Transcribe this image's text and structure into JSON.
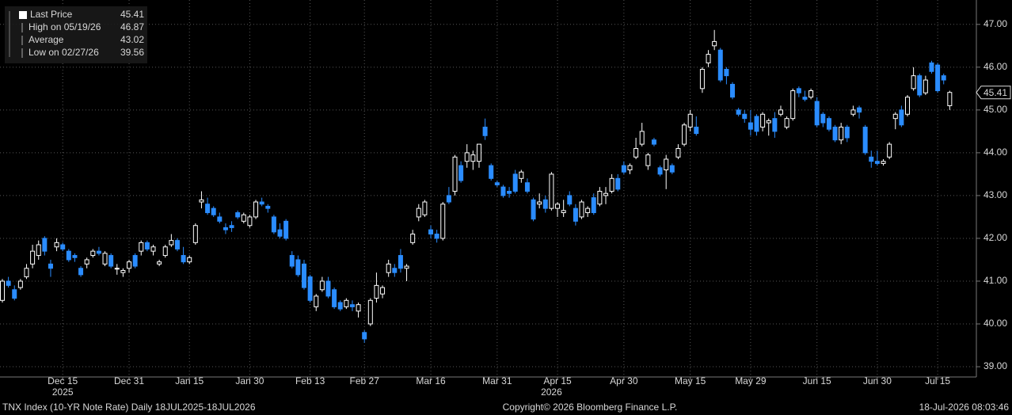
{
  "chart_data": {
    "type": "candlestick",
    "footer_left": "TNX Index (10-YR Note Rate) Daily 18JUL2025-18JUL2026",
    "footer_center": "Copyright© 2026 Bloomberg Finance L.P.",
    "footer_right": "18-Jul-2026 08:03:46",
    "legend": [
      {
        "label": "Last Price",
        "value": 45.41
      },
      {
        "label": "High on 05/19/26",
        "value": 46.87
      },
      {
        "label": "Average",
        "value": 43.02
      },
      {
        "label": "Low on 02/27/26",
        "value": 39.56
      }
    ],
    "up_color": "#000000",
    "down_color": "#2a8cff",
    "ylim": [
      38.76,
      47.57
    ],
    "yticks": [
      {
        "value": 39,
        "label": "39.00"
      },
      {
        "value": 40,
        "label": "40.00"
      },
      {
        "value": 41,
        "label": "41.00"
      },
      {
        "value": 42,
        "label": "42.00"
      },
      {
        "value": 43,
        "label": "43.00"
      },
      {
        "value": 44,
        "label": "44.00"
      },
      {
        "value": 45,
        "label": "45.00"
      },
      {
        "value": 46,
        "label": "46.00"
      },
      {
        "value": 47,
        "label": "47.00"
      }
    ],
    "xticks": [
      {
        "value": 10,
        "label": "Dec 15"
      },
      {
        "value": 21,
        "label": "Dec 31"
      },
      {
        "value": 31,
        "label": "Jan 15"
      },
      {
        "value": 41,
        "label": "Jan 30"
      },
      {
        "value": 51,
        "label": "Feb 13"
      },
      {
        "value": 60,
        "label": "Feb 27"
      },
      {
        "value": 71,
        "label": "Mar 16"
      },
      {
        "value": 82,
        "label": "Mar 31"
      },
      {
        "value": 92,
        "label": "Apr 15"
      },
      {
        "value": 103,
        "label": "Apr 30"
      },
      {
        "value": 114,
        "label": "May 15"
      },
      {
        "value": 124,
        "label": "May 29"
      },
      {
        "value": 135,
        "label": "Jun 15"
      },
      {
        "value": 145,
        "label": "Jun 30"
      },
      {
        "value": 155,
        "label": "Jul 15"
      }
    ],
    "years": [
      {
        "value": 10,
        "label": "2025"
      },
      {
        "value": 91,
        "label": "2026"
      }
    ],
    "ohlc": [
      [
        40.55,
        41.05,
        40.5,
        41.0
      ],
      [
        41.0,
        41.1,
        40.85,
        40.9
      ],
      [
        40.8,
        40.9,
        40.55,
        40.6
      ],
      [
        40.85,
        41.05,
        40.8,
        41.0
      ],
      [
        41.1,
        41.4,
        41.05,
        41.3
      ],
      [
        41.4,
        41.85,
        41.3,
        41.7
      ],
      [
        41.6,
        41.95,
        41.5,
        41.85
      ],
      [
        42.0,
        42.05,
        41.6,
        41.7
      ],
      [
        41.4,
        41.5,
        41.1,
        41.3
      ],
      [
        41.8,
        42.0,
        41.7,
        41.9
      ],
      [
        41.85,
        41.9,
        41.7,
        41.75
      ],
      [
        41.7,
        41.75,
        41.45,
        41.5
      ],
      [
        41.6,
        41.65,
        41.45,
        41.55
      ],
      [
        41.3,
        41.35,
        41.1,
        41.15
      ],
      [
        41.4,
        41.55,
        41.3,
        41.5
      ],
      [
        41.6,
        41.75,
        41.55,
        41.7
      ],
      [
        41.7,
        41.8,
        41.6,
        41.65
      ],
      [
        41.4,
        41.7,
        41.35,
        41.65
      ],
      [
        41.6,
        41.65,
        41.3,
        41.35
      ],
      [
        41.3,
        41.4,
        41.15,
        41.3
      ],
      [
        41.2,
        41.3,
        41.1,
        41.25
      ],
      [
        41.3,
        41.5,
        41.2,
        41.45
      ],
      [
        41.6,
        41.65,
        41.3,
        41.35
      ],
      [
        41.7,
        41.95,
        41.6,
        41.9
      ],
      [
        41.9,
        41.95,
        41.7,
        41.75
      ],
      [
        41.7,
        41.85,
        41.6,
        41.8
      ],
      [
        41.4,
        41.5,
        41.35,
        41.45
      ],
      [
        41.6,
        41.85,
        41.55,
        41.8
      ],
      [
        41.85,
        42.1,
        41.8,
        41.95
      ],
      [
        41.95,
        42.0,
        41.7,
        41.75
      ],
      [
        41.6,
        41.8,
        41.4,
        41.45
      ],
      [
        41.45,
        41.6,
        41.4,
        41.55
      ],
      [
        41.9,
        42.35,
        41.85,
        42.3
      ],
      [
        42.85,
        43.1,
        42.7,
        42.9
      ],
      [
        42.8,
        42.95,
        42.55,
        42.6
      ],
      [
        42.7,
        42.75,
        42.5,
        42.55
      ],
      [
        42.5,
        42.6,
        42.35,
        42.4
      ],
      [
        42.25,
        42.35,
        42.1,
        42.2
      ],
      [
        42.3,
        42.4,
        42.15,
        42.25
      ],
      [
        42.6,
        42.65,
        42.45,
        42.5
      ],
      [
        42.4,
        42.6,
        42.35,
        42.55
      ],
      [
        42.3,
        42.55,
        42.25,
        42.5
      ],
      [
        42.5,
        42.9,
        42.45,
        42.85
      ],
      [
        42.85,
        42.95,
        42.75,
        42.8
      ],
      [
        42.75,
        42.8,
        42.6,
        42.7
      ],
      [
        42.5,
        42.55,
        42.1,
        42.15
      ],
      [
        42.2,
        42.35,
        42.0,
        42.05
      ],
      [
        42.4,
        42.45,
        41.95,
        42.0
      ],
      [
        41.6,
        41.7,
        41.3,
        41.35
      ],
      [
        41.5,
        41.6,
        41.1,
        41.15
      ],
      [
        41.4,
        41.5,
        40.8,
        40.85
      ],
      [
        41.1,
        41.15,
        40.5,
        40.55
      ],
      [
        40.4,
        40.7,
        40.3,
        40.65
      ],
      [
        40.8,
        41.1,
        40.75,
        41.0
      ],
      [
        41.0,
        41.1,
        40.6,
        40.65
      ],
      [
        40.8,
        40.85,
        40.35,
        40.4
      ],
      [
        40.5,
        40.55,
        40.3,
        40.35
      ],
      [
        40.4,
        40.6,
        40.35,
        40.55
      ],
      [
        40.45,
        40.55,
        40.3,
        40.4
      ],
      [
        40.3,
        40.5,
        40.15,
        40.45
      ],
      [
        39.8,
        39.85,
        39.56,
        39.65
      ],
      [
        40.0,
        40.6,
        39.95,
        40.55
      ],
      [
        40.6,
        41.2,
        40.5,
        40.9
      ],
      [
        40.7,
        40.9,
        40.6,
        40.85
      ],
      [
        41.2,
        41.5,
        41.1,
        41.4
      ],
      [
        41.3,
        41.4,
        41.1,
        41.2
      ],
      [
        41.6,
        41.75,
        41.2,
        41.3
      ],
      [
        41.3,
        41.4,
        41.0,
        41.35
      ],
      [
        41.9,
        42.2,
        41.85,
        42.1
      ],
      [
        42.5,
        42.8,
        42.4,
        42.7
      ],
      [
        42.55,
        42.9,
        42.5,
        42.85
      ],
      [
        42.2,
        42.3,
        42.0,
        42.1
      ],
      [
        42.1,
        42.2,
        41.9,
        42.0
      ],
      [
        42.0,
        42.85,
        41.95,
        42.8
      ],
      [
        43.0,
        43.2,
        42.8,
        42.85
      ],
      [
        43.1,
        43.95,
        43.0,
        43.9
      ],
      [
        43.7,
        43.8,
        43.3,
        43.35
      ],
      [
        43.8,
        44.2,
        43.65,
        44.0
      ],
      [
        43.8,
        44.05,
        43.6,
        43.95
      ],
      [
        43.8,
        44.2,
        43.65,
        44.2
      ],
      [
        44.6,
        44.8,
        44.3,
        44.4
      ],
      [
        43.7,
        43.75,
        43.35,
        43.4
      ],
      [
        43.3,
        43.35,
        43.2,
        43.25
      ],
      [
        43.2,
        43.25,
        42.95,
        43.0
      ],
      [
        43.1,
        43.2,
        42.95,
        43.05
      ],
      [
        43.5,
        43.6,
        43.05,
        43.1
      ],
      [
        43.4,
        43.6,
        43.3,
        43.55
      ],
      [
        43.3,
        43.4,
        43.05,
        43.1
      ],
      [
        42.9,
        42.95,
        42.4,
        42.45
      ],
      [
        42.8,
        43.05,
        42.7,
        42.85
      ],
      [
        42.9,
        43.0,
        42.6,
        42.7
      ],
      [
        42.7,
        43.55,
        42.65,
        43.5
      ],
      [
        42.7,
        42.85,
        42.5,
        42.8
      ],
      [
        42.6,
        42.9,
        42.5,
        42.65
      ],
      [
        43.0,
        43.1,
        42.75,
        42.8
      ],
      [
        42.7,
        42.8,
        42.3,
        42.4
      ],
      [
        42.5,
        42.9,
        42.45,
        42.85
      ],
      [
        42.6,
        42.75,
        42.5,
        42.7
      ],
      [
        42.95,
        43.05,
        42.55,
        42.6
      ],
      [
        42.8,
        43.2,
        42.75,
        43.1
      ],
      [
        43.0,
        43.2,
        42.8,
        43.05
      ],
      [
        43.1,
        43.5,
        43.05,
        43.4
      ],
      [
        43.4,
        43.5,
        43.1,
        43.15
      ],
      [
        43.7,
        43.8,
        43.5,
        43.55
      ],
      [
        43.6,
        43.75,
        43.5,
        43.7
      ],
      [
        43.9,
        44.35,
        43.85,
        44.1
      ],
      [
        44.2,
        44.7,
        44.15,
        44.5
      ],
      [
        43.7,
        44.0,
        43.6,
        43.95
      ],
      [
        44.3,
        44.35,
        44.15,
        44.2
      ],
      [
        43.65,
        43.7,
        43.45,
        43.5
      ],
      [
        43.6,
        43.95,
        43.15,
        43.85
      ],
      [
        43.7,
        43.75,
        43.5,
        43.55
      ],
      [
        43.9,
        44.2,
        43.85,
        44.1
      ],
      [
        44.2,
        44.7,
        44.15,
        44.65
      ],
      [
        44.6,
        45.0,
        44.5,
        44.9
      ],
      [
        44.6,
        44.85,
        44.4,
        44.45
      ],
      [
        45.5,
        46.0,
        45.4,
        45.95
      ],
      [
        46.1,
        46.4,
        46.0,
        46.3
      ],
      [
        46.5,
        46.87,
        46.4,
        46.6
      ],
      [
        46.4,
        46.45,
        45.65,
        45.7
      ],
      [
        45.95,
        46.0,
        45.6,
        45.8
      ],
      [
        45.6,
        45.65,
        45.25,
        45.3
      ],
      [
        45.0,
        45.05,
        44.85,
        44.9
      ],
      [
        44.9,
        45.0,
        44.7,
        44.8
      ],
      [
        44.7,
        45.0,
        44.4,
        44.55
      ],
      [
        44.85,
        44.9,
        44.4,
        44.5
      ],
      [
        44.6,
        44.95,
        44.5,
        44.9
      ],
      [
        44.7,
        44.8,
        44.4,
        44.75
      ],
      [
        44.8,
        44.95,
        44.35,
        44.5
      ],
      [
        44.9,
        45.1,
        44.85,
        45.0
      ],
      [
        44.6,
        44.85,
        44.55,
        44.8
      ],
      [
        44.8,
        45.5,
        44.75,
        45.45
      ],
      [
        45.5,
        45.55,
        45.3,
        45.4
      ],
      [
        45.3,
        45.45,
        45.2,
        45.25
      ],
      [
        45.3,
        45.5,
        45.25,
        45.45
      ],
      [
        45.2,
        45.3,
        44.6,
        44.65
      ],
      [
        44.9,
        44.95,
        44.6,
        44.7
      ],
      [
        44.8,
        44.85,
        44.5,
        44.55
      ],
      [
        44.6,
        44.65,
        44.25,
        44.3
      ],
      [
        44.3,
        44.7,
        44.2,
        44.6
      ],
      [
        44.6,
        44.65,
        44.25,
        44.35
      ],
      [
        44.9,
        45.1,
        44.85,
        45.0
      ],
      [
        45.05,
        45.1,
        44.8,
        44.95
      ],
      [
        44.6,
        44.65,
        43.95,
        44.0
      ],
      [
        43.9,
        44.05,
        43.65,
        43.8
      ],
      [
        43.8,
        44.05,
        43.7,
        43.75
      ],
      [
        43.75,
        43.85,
        43.7,
        43.8
      ],
      [
        43.9,
        44.25,
        43.85,
        44.2
      ],
      [
        44.8,
        44.95,
        44.55,
        44.9
      ],
      [
        45.0,
        45.1,
        44.6,
        44.65
      ],
      [
        44.9,
        45.35,
        44.85,
        45.3
      ],
      [
        45.5,
        46.0,
        45.45,
        45.8
      ],
      [
        45.8,
        45.85,
        45.3,
        45.35
      ],
      [
        45.4,
        45.8,
        45.35,
        45.7
      ],
      [
        46.1,
        46.15,
        45.85,
        45.9
      ],
      [
        46.05,
        46.1,
        45.4,
        45.45
      ],
      [
        45.8,
        45.85,
        45.6,
        45.7
      ],
      [
        45.1,
        45.45,
        45.0,
        45.41
      ]
    ]
  }
}
